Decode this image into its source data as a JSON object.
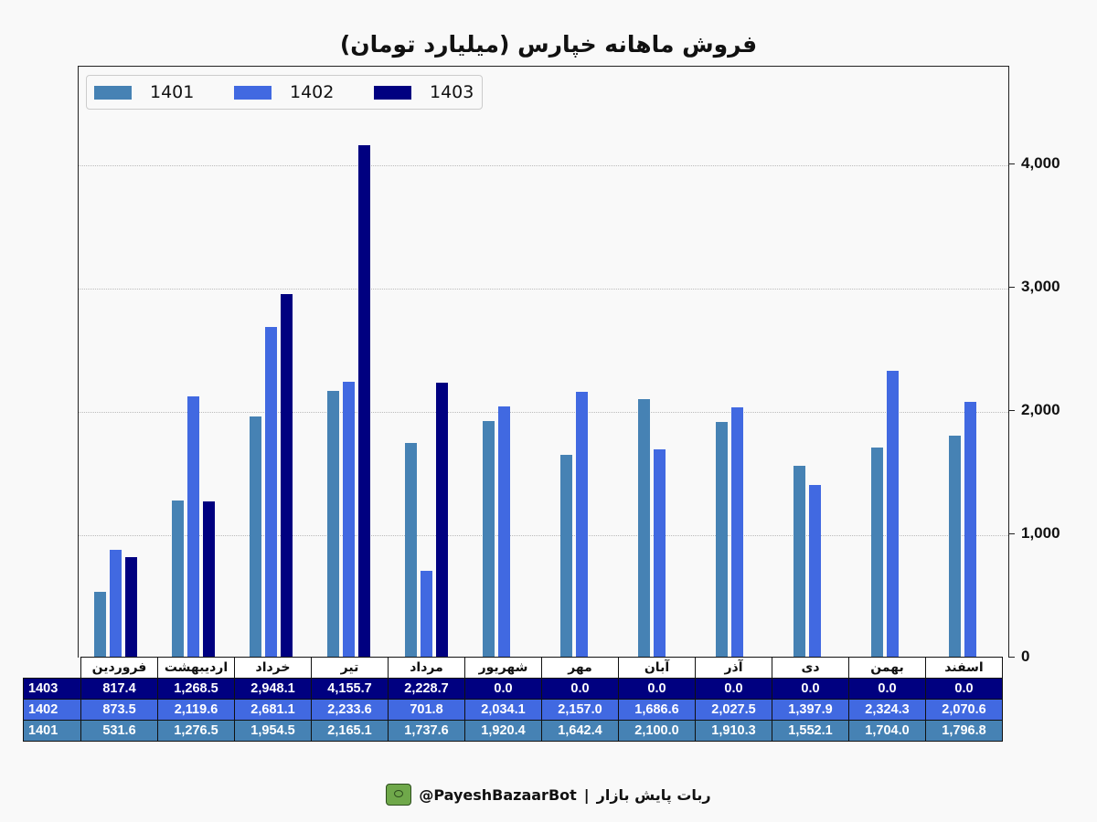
{
  "title": "فروش ماهانه خپارس (میلیارد تومان)",
  "legend": [
    {
      "label": "1401",
      "color": "#4682b4"
    },
    {
      "label": "1402",
      "color": "#4169e1"
    },
    {
      "label": "1403",
      "color": "#000080"
    }
  ],
  "y_ticks": [
    "0",
    "1,000",
    "2,000",
    "3,000",
    "4,000"
  ],
  "table": {
    "months": [
      "فروردین",
      "اردیبهشت",
      "خرداد",
      "تیر",
      "مرداد",
      "شهریور",
      "مهر",
      "آبان",
      "آذر",
      "دی",
      "بهمن",
      "اسفند"
    ],
    "rows": [
      {
        "label": "1403",
        "values": [
          "817.4",
          "1,268.5",
          "2,948.1",
          "4,155.7",
          "2,228.7",
          "0.0",
          "0.0",
          "0.0",
          "0.0",
          "0.0",
          "0.0",
          "0.0"
        ]
      },
      {
        "label": "1402",
        "values": [
          "873.5",
          "2,119.6",
          "2,681.1",
          "2,233.6",
          "701.8",
          "2,034.1",
          "2,157.0",
          "1,686.6",
          "2,027.5",
          "1,397.9",
          "2,324.3",
          "2,070.6"
        ]
      },
      {
        "label": "1401",
        "values": [
          "531.6",
          "1,276.5",
          "1,954.5",
          "2,165.1",
          "1,737.6",
          "1,920.4",
          "1,642.4",
          "2,100.0",
          "1,910.3",
          "1,552.1",
          "1,704.0",
          "1,796.8"
        ]
      }
    ]
  },
  "footer": {
    "handle": "@PayeshBazaarBot",
    "separator": "|",
    "name": "ربات پایش بازار"
  },
  "chart_data": {
    "type": "bar",
    "title": "فروش ماهانه خپارس (میلیارد تومان)",
    "xlabel": "",
    "ylabel": "",
    "ylim": [
      0,
      4800
    ],
    "y_axis_position": "right",
    "grid": true,
    "legend_position": "upper left",
    "categories": [
      "فروردین",
      "اردیبهشت",
      "خرداد",
      "تیر",
      "مرداد",
      "شهریور",
      "مهر",
      "آبان",
      "آذر",
      "دی",
      "بهمن",
      "اسفند"
    ],
    "series": [
      {
        "name": "1401",
        "color": "#4682b4",
        "values": [
          531.6,
          1276.5,
          1954.5,
          2165.1,
          1737.6,
          1920.4,
          1642.4,
          2100.0,
          1910.3,
          1552.1,
          1704.0,
          1796.8
        ]
      },
      {
        "name": "1402",
        "color": "#4169e1",
        "values": [
          873.5,
          2119.6,
          2681.1,
          2233.6,
          701.8,
          2034.1,
          2157.0,
          1686.6,
          2027.5,
          1397.9,
          2324.3,
          2070.6
        ]
      },
      {
        "name": "1403",
        "color": "#000080",
        "values": [
          817.4,
          1268.5,
          2948.1,
          4155.7,
          2228.7,
          0,
          0,
          0,
          0,
          0,
          0,
          0
        ]
      }
    ]
  }
}
